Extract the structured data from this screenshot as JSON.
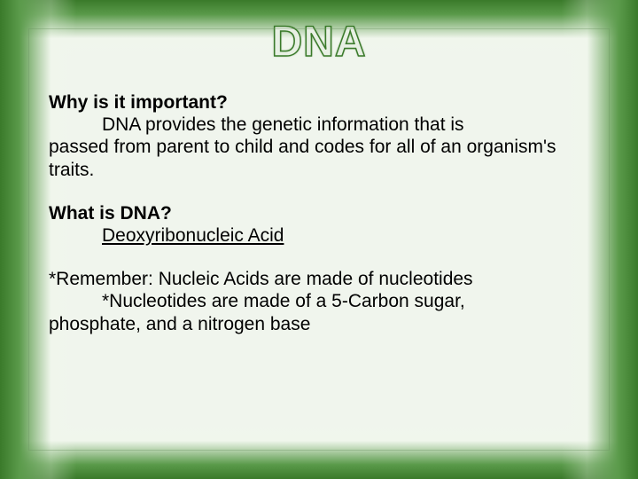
{
  "title": "DNA",
  "section1": {
    "question": "Why is it important?",
    "answer_line1": "DNA provides the genetic information that is",
    "answer_line2": "passed from parent to child and codes for all of an organism's traits."
  },
  "section2": {
    "question": "What is DNA?",
    "answer": "Deoxyribonucleic Acid"
  },
  "section3": {
    "line1": "*Remember: Nucleic Acids are made of nucleotides",
    "line2": "*Nucleotides are made of a 5-Carbon sugar,",
    "line3": "phosphate, and a nitrogen base"
  },
  "colors": {
    "border_dark": "#3a7a2a",
    "border_light": "#5a9a4a",
    "background": "#f0f5ed",
    "text": "#000000",
    "title_fill": "#e8f0e4"
  },
  "fonts": {
    "title_size": 48,
    "body_size": 21,
    "family": "Arial"
  }
}
